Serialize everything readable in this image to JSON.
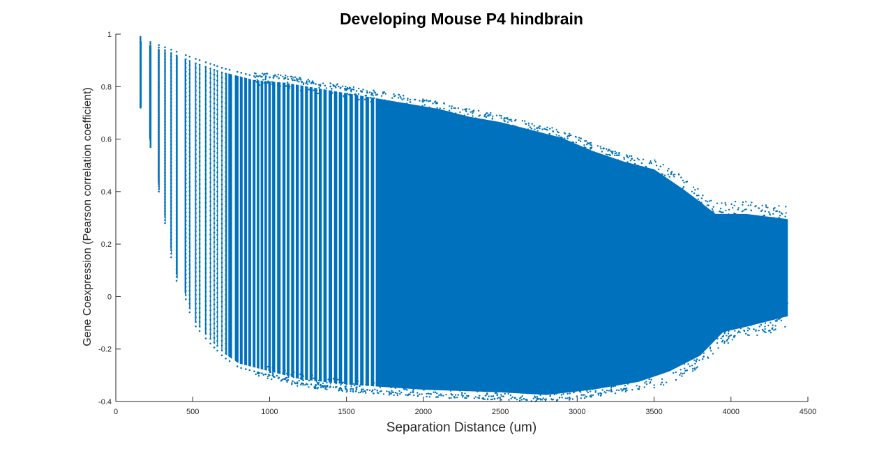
{
  "chart_data": {
    "type": "scatter",
    "title": "Developing Mouse P4 hindbrain",
    "xlabel": "Separation Distance (um)",
    "ylabel": "Gene Coexpression (Pearson correlation coefficient)",
    "xlim": [
      0,
      4500
    ],
    "ylim": [
      -0.4,
      1
    ],
    "xticks": [
      0,
      500,
      1000,
      1500,
      2000,
      2500,
      3000,
      3500,
      4000,
      4500
    ],
    "xtick_labels": [
      "0",
      "500",
      "1000",
      "1500",
      "2000",
      "2500",
      "3000",
      "3500",
      "4000",
      "4500"
    ],
    "yticks": [
      -0.4,
      -0.2,
      0,
      0.2,
      0.4,
      0.6,
      0.8,
      1
    ],
    "ytick_labels": [
      "-0.4",
      "-0.2",
      "0",
      "0.2",
      "0.4",
      "0.6",
      "0.8",
      "1"
    ],
    "grid": false,
    "legend": "none",
    "marker_color": "#0072BD",
    "series": [
      {
        "points_desc": "dense vertical point columns at discrete separation distances",
        "columns_x": [
          160,
          225,
          280,
          320,
          360,
          395,
          455,
          480,
          520,
          545,
          585,
          615,
          640,
          660,
          690,
          715,
          740,
          790,
          815,
          845,
          870,
          900,
          925,
          950,
          975,
          1000,
          1025,
          1060,
          1095,
          1120,
          1150,
          1180,
          1210,
          1240,
          1270,
          1300,
          1330,
          1360,
          1395,
          1430,
          1460,
          1495,
          1530,
          1565,
          1600,
          1635,
          1670,
          1700
        ],
        "upper_envelope": [
          [
            160,
            0.99
          ],
          [
            225,
            0.97
          ],
          [
            320,
            0.95
          ],
          [
            500,
            0.91
          ],
          [
            700,
            0.87
          ],
          [
            900,
            0.84
          ],
          [
            1100,
            0.83
          ],
          [
            1300,
            0.81
          ],
          [
            1500,
            0.79
          ],
          [
            1700,
            0.77
          ],
          [
            1900,
            0.75
          ],
          [
            2100,
            0.73
          ],
          [
            2300,
            0.7
          ],
          [
            2500,
            0.68
          ],
          [
            2700,
            0.65
          ],
          [
            2900,
            0.62
          ],
          [
            3100,
            0.57
          ],
          [
            3300,
            0.53
          ],
          [
            3500,
            0.5
          ],
          [
            3700,
            0.42
          ],
          [
            3900,
            0.33
          ],
          [
            4100,
            0.33
          ],
          [
            4370,
            0.31
          ]
        ],
        "lower_envelope": [
          [
            160,
            0.72
          ],
          [
            225,
            0.57
          ],
          [
            280,
            0.4
          ],
          [
            320,
            0.28
          ],
          [
            360,
            0.15
          ],
          [
            395,
            0.06
          ],
          [
            455,
            -0.01
          ],
          [
            500,
            -0.1
          ],
          [
            600,
            -0.17
          ],
          [
            700,
            -0.23
          ],
          [
            800,
            -0.27
          ],
          [
            1000,
            -0.3
          ],
          [
            1200,
            -0.33
          ],
          [
            1500,
            -0.35
          ],
          [
            2000,
            -0.37
          ],
          [
            2500,
            -0.38
          ],
          [
            2800,
            -0.39
          ],
          [
            3100,
            -0.37
          ],
          [
            3400,
            -0.34
          ],
          [
            3600,
            -0.3
          ],
          [
            3800,
            -0.24
          ],
          [
            3950,
            -0.15
          ],
          [
            4100,
            -0.13
          ],
          [
            4370,
            -0.09
          ]
        ]
      }
    ]
  }
}
